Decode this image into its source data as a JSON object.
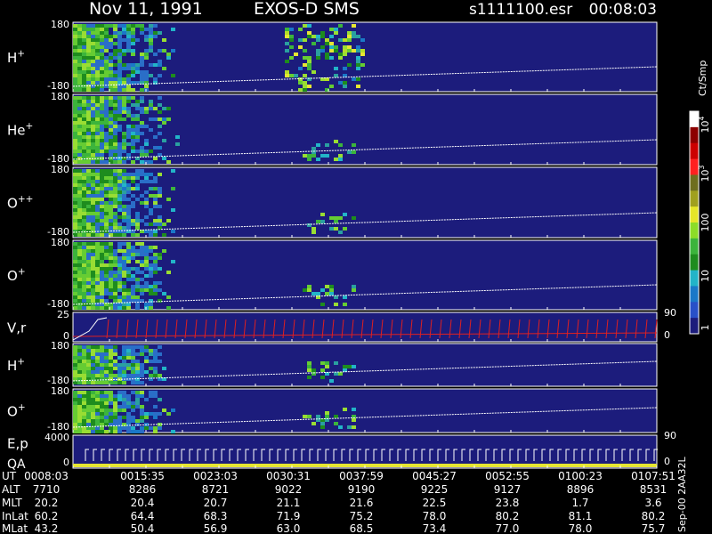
{
  "header": {
    "date": "Nov 11, 1991",
    "instrument": "EXOS-D SMS",
    "file": "s1111100.esr",
    "time": "00:08:03"
  },
  "panels": [
    {
      "label": {
        "base": "H",
        "sup": "+"
      },
      "ticks": [
        "180",
        "-180"
      ]
    },
    {
      "label": {
        "base": "He",
        "sup": "+"
      },
      "ticks": [
        "180",
        "-180"
      ]
    },
    {
      "label": {
        "base": "O",
        "sup": "++"
      },
      "ticks": [
        "180",
        "-180"
      ]
    },
    {
      "label": {
        "base": "O",
        "sup": "+"
      },
      "ticks": [
        "180",
        "-180"
      ]
    },
    {
      "label": {
        "base": "V,r"
      },
      "ticks": [
        "25",
        "0"
      ],
      "right_ticks": [
        "90",
        "0"
      ]
    },
    {
      "label": {
        "base": "H",
        "sup": "+"
      },
      "ticks": [
        "180",
        "-180"
      ]
    },
    {
      "label": {
        "base": "O",
        "sup": "+"
      },
      "ticks": [
        "180",
        "-180"
      ]
    },
    {
      "label": {
        "base": "E,p"
      },
      "sublabel": "QA",
      "ticks": [
        "4000",
        "0"
      ],
      "right_ticks": [
        "90",
        "0"
      ]
    }
  ],
  "colorbar": {
    "unit": "Ct/Smp",
    "labels": [
      {
        "base": "10",
        "sup": "4"
      },
      {
        "base": "10",
        "sup": "3"
      },
      {
        "base": "100"
      },
      {
        "base": "10"
      },
      {
        "base": "1"
      }
    ]
  },
  "footer": {
    "rows": [
      {
        "label": "UT",
        "values": [
          "0008:03",
          "0015:35",
          "0023:03",
          "0030:31",
          "0037:59",
          "0045:27",
          "0052:55",
          "0100:23",
          "0107:51"
        ]
      },
      {
        "label": "ALT",
        "values": [
          "7710",
          "8286",
          "8721",
          "9022",
          "9190",
          "9225",
          "9127",
          "8896",
          "8531"
        ]
      },
      {
        "label": "MLT",
        "values": [
          "20.2",
          "20.4",
          "20.7",
          "21.1",
          "21.6",
          "22.5",
          "23.8",
          "1.7",
          "3.6"
        ]
      },
      {
        "label": "InLat",
        "values": [
          "60.2",
          "64.4",
          "68.3",
          "71.9",
          "75.2",
          "78.0",
          "80.2",
          "81.1",
          "80.2"
        ]
      },
      {
        "label": "MLat",
        "values": [
          "43.2",
          "50.4",
          "56.9",
          "63.0",
          "68.5",
          "73.4",
          "77.0",
          "78.0",
          "75.7"
        ]
      }
    ]
  },
  "stamp": "Sep-00  2AA32L"
}
